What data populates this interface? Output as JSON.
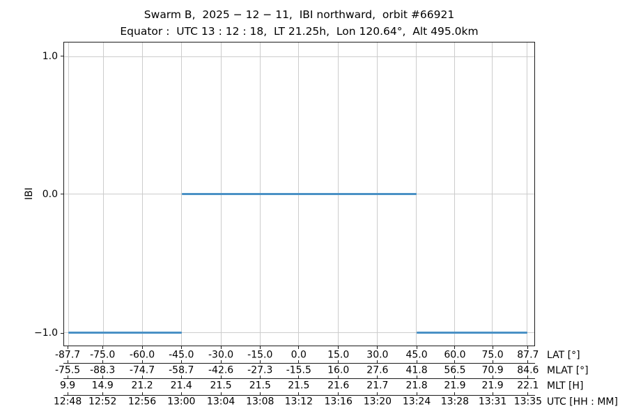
{
  "chart_data": {
    "type": "line",
    "title": "Swarm B,  2025 − 12 − 11,  IBI northward,  orbit #66921",
    "subtitle": "Equator :  UTC 13 : 12 : 18,  LT 21.25h,  Lon 120.64°,  Alt 495.0km",
    "ylabel": "IBI",
    "grid": true,
    "legend": "none",
    "ylim": [
      -1.1,
      1.1
    ],
    "colors": {
      "line": "#4a91c5",
      "grid": "#cccccc",
      "spine": "#1a1a1a",
      "text": "#000000",
      "background": "#ffffff"
    },
    "y_ticks": [
      {
        "label": "1.0",
        "value": 1.0,
        "pct": 4.8
      },
      {
        "label": "0.0",
        "value": 0.0,
        "pct": 50.1
      },
      {
        "label": "−1.0",
        "value": -1.0,
        "pct": 95.7
      }
    ],
    "x_tick_pct": [
      0.9,
      8.3,
      16.7,
      25.0,
      33.4,
      41.7,
      49.9,
      58.3,
      66.6,
      74.9,
      83.0,
      91.0,
      98.5
    ],
    "x_axis_rows": [
      {
        "name": "lat",
        "label": "LAT [°]",
        "values": [
          "-87.7",
          "-75.0",
          "-60.0",
          "-45.0",
          "-30.0",
          "-15.0",
          "0.0",
          "15.0",
          "30.0",
          "45.0",
          "60.0",
          "75.0",
          "87.7"
        ]
      },
      {
        "name": "mlat",
        "label": "MLAT [°]",
        "values": [
          "-75.5",
          "-88.3",
          "-74.7",
          "-58.7",
          "-42.6",
          "-27.3",
          "-15.5",
          "16.0",
          "27.6",
          "41.8",
          "56.5",
          "70.9",
          "84.6"
        ]
      },
      {
        "name": "mlt",
        "label": "MLT [H]",
        "values": [
          "9.9",
          "14.9",
          "21.2",
          "21.4",
          "21.5",
          "21.5",
          "21.5",
          "21.6",
          "21.7",
          "21.8",
          "21.9",
          "21.9",
          "22.1"
        ]
      },
      {
        "name": "utc",
        "label": "UTC [HH : MM]",
        "values": [
          "12:48",
          "12:52",
          "12:56",
          "13:00",
          "13:04",
          "13:08",
          "13:12",
          "13:16",
          "13:20",
          "13:24",
          "13:28",
          "13:31",
          "13:35"
        ]
      }
    ],
    "series": [
      {
        "name": "IBI",
        "segments": [
          {
            "ibi": -1.0,
            "from_tick": 0,
            "to_tick": 3,
            "lat_range": [
              "-87.7",
              "-45.0"
            ],
            "utc_range": [
              "12:48",
              "13:00"
            ]
          },
          {
            "ibi": 0.0,
            "from_tick": 3,
            "to_tick": 9,
            "lat_range": [
              "-45.0",
              "45.0"
            ],
            "utc_range": [
              "13:00",
              "13:24"
            ]
          },
          {
            "ibi": -1.0,
            "from_tick": 9,
            "to_tick": 12,
            "lat_range": [
              "45.0",
              "87.7"
            ],
            "utc_range": [
              "13:24",
              "13:35"
            ]
          }
        ]
      }
    ]
  }
}
